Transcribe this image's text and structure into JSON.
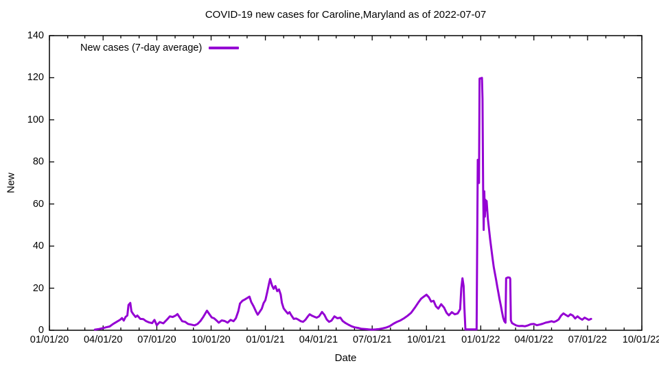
{
  "chart_data": {
    "type": "line",
    "title": "COVID-19 new cases for Caroline,Maryland as of 2022-07-07",
    "xlabel": "Date",
    "ylabel": "New",
    "x_range": [
      "2020-01-01",
      "2022-10-01"
    ],
    "ylim": [
      0,
      140
    ],
    "y_ticks": [
      0,
      20,
      40,
      60,
      80,
      100,
      120,
      140
    ],
    "x_ticks": [
      {
        "label": "01/01/20",
        "date": "2020-01-01"
      },
      {
        "label": "04/01/20",
        "date": "2020-04-01"
      },
      {
        "label": "07/01/20",
        "date": "2020-07-01"
      },
      {
        "label": "10/01/20",
        "date": "2020-10-01"
      },
      {
        "label": "01/01/21",
        "date": "2021-01-01"
      },
      {
        "label": "04/01/21",
        "date": "2021-04-01"
      },
      {
        "label": "07/01/21",
        "date": "2021-07-01"
      },
      {
        "label": "10/01/21",
        "date": "2021-10-01"
      },
      {
        "label": "01/01/22",
        "date": "2022-01-01"
      },
      {
        "label": "04/01/22",
        "date": "2022-04-01"
      },
      {
        "label": "07/01/22",
        "date": "2022-07-01"
      },
      {
        "label": "10/01/22",
        "date": "2022-10-01"
      }
    ],
    "minor_x_tick_interval": "month",
    "grid": false,
    "legend_position": "top-left-inside",
    "colors": {
      "line": "#9400d3",
      "axis": "#000000",
      "text": "#000000",
      "background": "#ffffff"
    },
    "series": [
      {
        "name": "New cases (7-day average)",
        "color": "#9400d3",
        "points": [
          [
            "2020-03-18",
            0.3
          ],
          [
            "2020-03-25",
            0.6
          ],
          [
            "2020-04-01",
            1.0
          ],
          [
            "2020-04-06",
            1.4
          ],
          [
            "2020-04-12",
            1.8
          ],
          [
            "2020-04-18",
            3.0
          ],
          [
            "2020-04-24",
            4.0
          ],
          [
            "2020-04-30",
            5.0
          ],
          [
            "2020-05-03",
            5.8
          ],
          [
            "2020-05-06",
            4.6
          ],
          [
            "2020-05-09",
            6.3
          ],
          [
            "2020-05-12",
            7.0
          ],
          [
            "2020-05-14",
            12.0
          ],
          [
            "2020-05-17",
            13.0
          ],
          [
            "2020-05-19",
            9.0
          ],
          [
            "2020-05-22",
            7.7
          ],
          [
            "2020-05-26",
            6.3
          ],
          [
            "2020-05-29",
            7.0
          ],
          [
            "2020-06-03",
            5.4
          ],
          [
            "2020-06-08",
            5.3
          ],
          [
            "2020-06-13",
            4.3
          ],
          [
            "2020-06-18",
            3.7
          ],
          [
            "2020-06-23",
            3.4
          ],
          [
            "2020-06-27",
            4.9
          ],
          [
            "2020-07-01",
            2.4
          ],
          [
            "2020-07-06",
            3.9
          ],
          [
            "2020-07-12",
            3.3
          ],
          [
            "2020-07-18",
            5.0
          ],
          [
            "2020-07-23",
            6.6
          ],
          [
            "2020-07-28",
            6.3
          ],
          [
            "2020-08-02",
            7.0
          ],
          [
            "2020-08-05",
            7.7
          ],
          [
            "2020-08-09",
            6.0
          ],
          [
            "2020-08-13",
            4.3
          ],
          [
            "2020-08-18",
            4.0
          ],
          [
            "2020-08-23",
            3.0
          ],
          [
            "2020-08-28",
            2.7
          ],
          [
            "2020-09-03",
            2.3
          ],
          [
            "2020-09-08",
            3.0
          ],
          [
            "2020-09-13",
            4.4
          ],
          [
            "2020-09-18",
            6.4
          ],
          [
            "2020-09-24",
            9.3
          ],
          [
            "2020-09-28",
            7.7
          ],
          [
            "2020-10-02",
            6.1
          ],
          [
            "2020-10-06",
            5.7
          ],
          [
            "2020-10-10",
            4.7
          ],
          [
            "2020-10-14",
            3.6
          ],
          [
            "2020-10-19",
            4.7
          ],
          [
            "2020-10-24",
            4.4
          ],
          [
            "2020-10-29",
            3.6
          ],
          [
            "2020-11-03",
            4.9
          ],
          [
            "2020-11-08",
            4.3
          ],
          [
            "2020-11-12",
            5.7
          ],
          [
            "2020-11-16",
            9.0
          ],
          [
            "2020-11-19",
            12.7
          ],
          [
            "2020-11-23",
            14.0
          ],
          [
            "2020-11-27",
            14.6
          ],
          [
            "2020-12-01",
            15.3
          ],
          [
            "2020-12-05",
            16.0
          ],
          [
            "2020-12-08",
            13.4
          ],
          [
            "2020-12-12",
            11.4
          ],
          [
            "2020-12-16",
            9.0
          ],
          [
            "2020-12-19",
            7.4
          ],
          [
            "2020-12-22",
            8.6
          ],
          [
            "2020-12-26",
            10.3
          ],
          [
            "2020-12-29",
            12.9
          ],
          [
            "2021-01-01",
            14.3
          ],
          [
            "2021-01-04",
            18.0
          ],
          [
            "2021-01-07",
            22.0
          ],
          [
            "2021-01-09",
            24.4
          ],
          [
            "2021-01-12",
            21.4
          ],
          [
            "2021-01-15",
            19.7
          ],
          [
            "2021-01-18",
            21.0
          ],
          [
            "2021-01-21",
            18.6
          ],
          [
            "2021-01-24",
            19.4
          ],
          [
            "2021-01-27",
            17.0
          ],
          [
            "2021-01-29",
            13.0
          ],
          [
            "2021-02-01",
            10.4
          ],
          [
            "2021-02-04",
            9.3
          ],
          [
            "2021-02-08",
            7.9
          ],
          [
            "2021-02-11",
            8.6
          ],
          [
            "2021-02-14",
            7.1
          ],
          [
            "2021-02-18",
            5.4
          ],
          [
            "2021-02-22",
            5.6
          ],
          [
            "2021-02-26",
            5.0
          ],
          [
            "2021-03-02",
            4.3
          ],
          [
            "2021-03-06",
            4.0
          ],
          [
            "2021-03-10",
            5.0
          ],
          [
            "2021-03-14",
            6.6
          ],
          [
            "2021-03-17",
            7.6
          ],
          [
            "2021-03-21",
            6.9
          ],
          [
            "2021-03-25",
            6.4
          ],
          [
            "2021-03-29",
            6.0
          ],
          [
            "2021-04-02",
            6.6
          ],
          [
            "2021-04-07",
            8.7
          ],
          [
            "2021-04-11",
            7.3
          ],
          [
            "2021-04-15",
            5.1
          ],
          [
            "2021-04-19",
            4.0
          ],
          [
            "2021-04-23",
            4.6
          ],
          [
            "2021-04-28",
            6.6
          ],
          [
            "2021-05-03",
            5.7
          ],
          [
            "2021-05-08",
            6.0
          ],
          [
            "2021-05-12",
            4.4
          ],
          [
            "2021-05-17",
            3.4
          ],
          [
            "2021-05-22",
            2.6
          ],
          [
            "2021-05-27",
            1.9
          ],
          [
            "2021-06-01",
            1.4
          ],
          [
            "2021-06-07",
            1.1
          ],
          [
            "2021-06-13",
            0.7
          ],
          [
            "2021-06-19",
            0.6
          ],
          [
            "2021-06-25",
            0.4
          ],
          [
            "2021-07-01",
            0.3
          ],
          [
            "2021-07-07",
            0.4
          ],
          [
            "2021-07-13",
            0.6
          ],
          [
            "2021-07-19",
            0.9
          ],
          [
            "2021-07-25",
            1.3
          ],
          [
            "2021-07-31",
            2.0
          ],
          [
            "2021-08-06",
            3.1
          ],
          [
            "2021-08-12",
            4.0
          ],
          [
            "2021-08-18",
            4.7
          ],
          [
            "2021-08-24",
            5.7
          ],
          [
            "2021-08-30",
            6.9
          ],
          [
            "2021-09-05",
            8.3
          ],
          [
            "2021-09-11",
            10.6
          ],
          [
            "2021-09-17",
            13.1
          ],
          [
            "2021-09-22",
            15.0
          ],
          [
            "2021-09-27",
            16.1
          ],
          [
            "2021-10-01",
            16.9
          ],
          [
            "2021-10-05",
            15.7
          ],
          [
            "2021-10-09",
            13.6
          ],
          [
            "2021-10-13",
            14.0
          ],
          [
            "2021-10-17",
            11.4
          ],
          [
            "2021-10-21",
            10.3
          ],
          [
            "2021-10-26",
            12.4
          ],
          [
            "2021-10-31",
            10.7
          ],
          [
            "2021-11-04",
            8.3
          ],
          [
            "2021-11-08",
            7.1
          ],
          [
            "2021-11-13",
            8.6
          ],
          [
            "2021-11-18",
            7.6
          ],
          [
            "2021-11-23",
            8.0
          ],
          [
            "2021-11-27",
            10.0
          ],
          [
            "2021-11-29",
            20.0
          ],
          [
            "2021-12-01",
            24.7
          ],
          [
            "2021-12-03",
            21.0
          ],
          [
            "2021-12-04",
            12.0
          ],
          [
            "2021-12-06",
            0.4
          ],
          [
            "2021-12-25",
            0.4
          ],
          [
            "2021-12-27",
            81.0
          ],
          [
            "2021-12-28",
            74.0
          ],
          [
            "2021-12-29",
            70.0
          ],
          [
            "2021-12-30",
            119.6
          ],
          [
            "2022-01-03",
            119.9
          ],
          [
            "2022-01-04",
            110.0
          ],
          [
            "2022-01-05",
            68.0
          ],
          [
            "2022-01-06",
            47.7
          ],
          [
            "2022-01-07",
            66.0
          ],
          [
            "2022-01-08",
            54.0
          ],
          [
            "2022-01-09",
            62.0
          ],
          [
            "2022-01-10",
            57.0
          ],
          [
            "2022-01-11",
            61.4
          ],
          [
            "2022-01-13",
            53.0
          ],
          [
            "2022-01-15",
            48.0
          ],
          [
            "2022-01-17",
            43.0
          ],
          [
            "2022-01-19",
            38.6
          ],
          [
            "2022-01-21",
            34.3
          ],
          [
            "2022-01-23",
            30.0
          ],
          [
            "2022-01-25",
            27.0
          ],
          [
            "2022-01-27",
            24.0
          ],
          [
            "2022-01-29",
            20.7
          ],
          [
            "2022-01-31",
            17.7
          ],
          [
            "2022-02-02",
            14.6
          ],
          [
            "2022-02-04",
            11.7
          ],
          [
            "2022-02-06",
            8.7
          ],
          [
            "2022-02-08",
            6.0
          ],
          [
            "2022-02-10",
            4.3
          ],
          [
            "2022-02-12",
            3.6
          ],
          [
            "2022-02-13",
            24.7
          ],
          [
            "2022-02-16",
            25.1
          ],
          [
            "2022-02-19",
            25.0
          ],
          [
            "2022-02-20",
            24.4
          ],
          [
            "2022-02-21",
            4.7
          ],
          [
            "2022-02-23",
            3.4
          ],
          [
            "2022-02-26",
            2.9
          ],
          [
            "2022-03-02",
            2.3
          ],
          [
            "2022-03-07",
            2.0
          ],
          [
            "2022-03-12",
            2.1
          ],
          [
            "2022-03-17",
            1.9
          ],
          [
            "2022-03-22",
            2.3
          ],
          [
            "2022-03-27",
            2.9
          ],
          [
            "2022-04-01",
            3.0
          ],
          [
            "2022-04-06",
            2.4
          ],
          [
            "2022-04-11",
            2.7
          ],
          [
            "2022-04-16",
            3.1
          ],
          [
            "2022-04-21",
            3.6
          ],
          [
            "2022-04-26",
            3.9
          ],
          [
            "2022-05-01",
            4.3
          ],
          [
            "2022-05-05",
            3.9
          ],
          [
            "2022-05-09",
            4.4
          ],
          [
            "2022-05-13",
            5.1
          ],
          [
            "2022-05-17",
            6.9
          ],
          [
            "2022-05-21",
            8.0
          ],
          [
            "2022-05-25",
            7.3
          ],
          [
            "2022-05-29",
            6.6
          ],
          [
            "2022-06-02",
            7.6
          ],
          [
            "2022-06-06",
            7.0
          ],
          [
            "2022-06-10",
            5.6
          ],
          [
            "2022-06-14",
            6.6
          ],
          [
            "2022-06-18",
            5.7
          ],
          [
            "2022-06-22",
            5.0
          ],
          [
            "2022-06-26",
            6.0
          ],
          [
            "2022-06-30",
            5.4
          ],
          [
            "2022-07-03",
            4.9
          ],
          [
            "2022-07-07",
            5.4
          ]
        ]
      }
    ]
  }
}
